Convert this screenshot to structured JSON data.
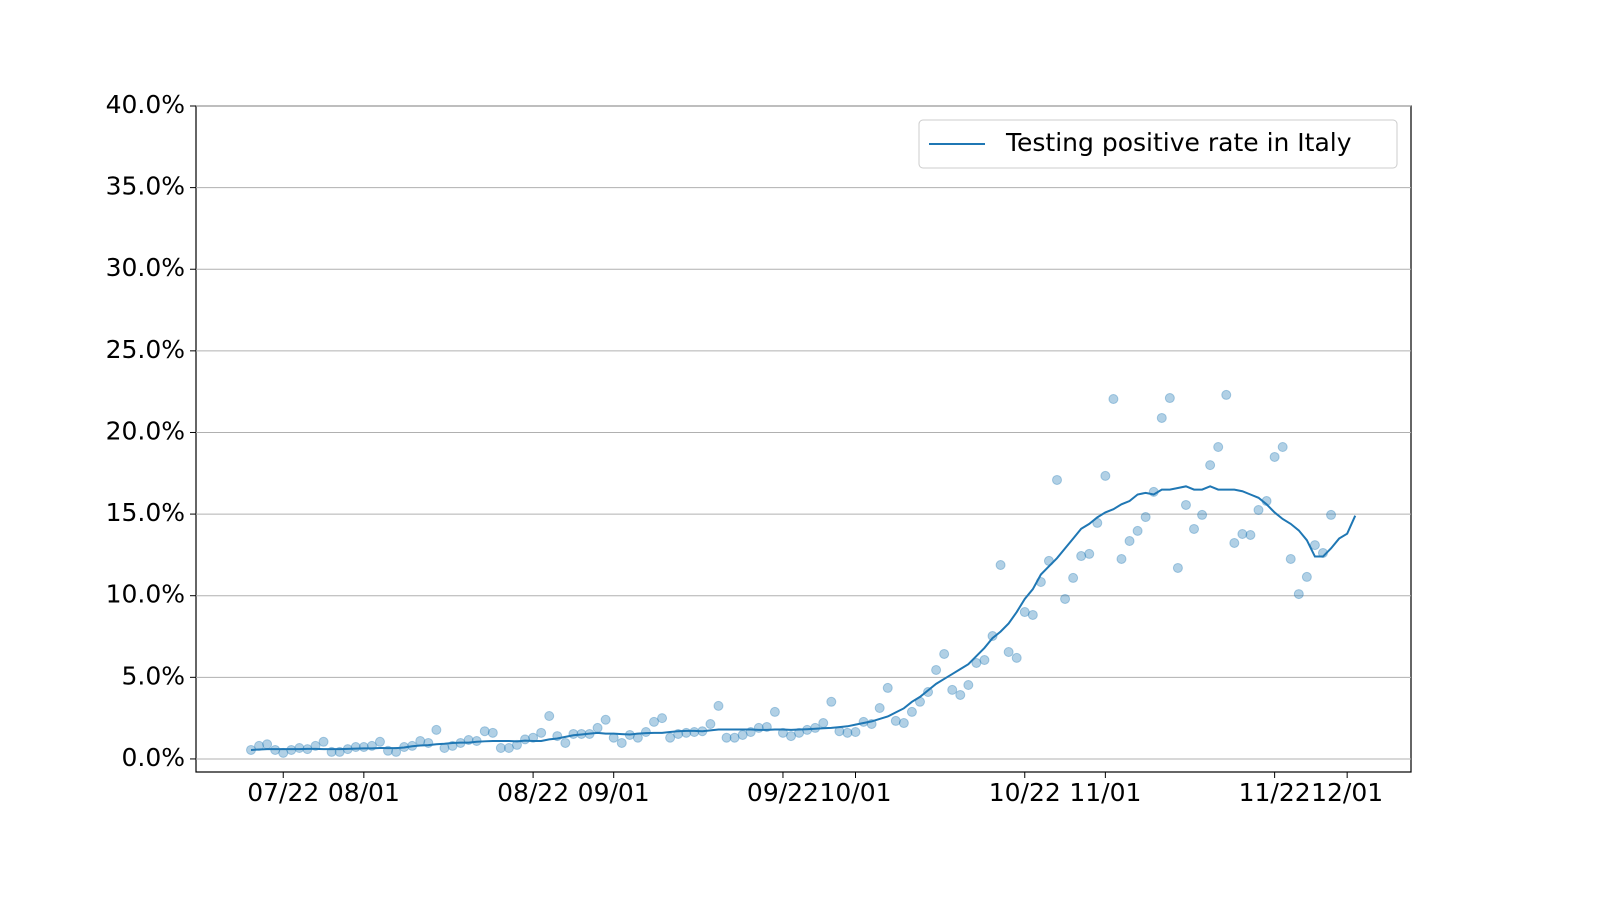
{
  "chart_data": {
    "type": "line",
    "x": [
      "07/18",
      "07/19",
      "07/20",
      "07/21",
      "07/22",
      "07/23",
      "07/24",
      "07/25",
      "07/26",
      "07/27",
      "07/28",
      "07/29",
      "07/30",
      "07/31",
      "08/01",
      "08/02",
      "08/03",
      "08/04",
      "08/05",
      "08/06",
      "08/07",
      "08/08",
      "08/09",
      "08/10",
      "08/11",
      "08/12",
      "08/13",
      "08/14",
      "08/15",
      "08/16",
      "08/17",
      "08/18",
      "08/19",
      "08/20",
      "08/21",
      "08/22",
      "08/23",
      "08/24",
      "08/25",
      "08/26",
      "08/27",
      "08/28",
      "08/29",
      "08/30",
      "08/31",
      "09/01",
      "09/02",
      "09/03",
      "09/04",
      "09/05",
      "09/06",
      "09/07",
      "09/08",
      "09/09",
      "09/10",
      "09/11",
      "09/12",
      "09/13",
      "09/14",
      "09/15",
      "09/16",
      "09/17",
      "09/18",
      "09/19",
      "09/20",
      "09/21",
      "09/22",
      "09/23",
      "09/24",
      "09/25",
      "09/26",
      "09/27",
      "09/28",
      "09/29",
      "09/30",
      "10/01",
      "10/02",
      "10/03",
      "10/04",
      "10/05",
      "10/06",
      "10/07",
      "10/08",
      "10/09",
      "10/10",
      "10/11",
      "10/12",
      "10/13",
      "10/14",
      "10/15",
      "10/16",
      "10/17",
      "10/18",
      "10/19",
      "10/20",
      "10/21",
      "10/22",
      "10/23",
      "10/24",
      "10/25",
      "10/26",
      "10/27",
      "10/28",
      "10/29",
      "10/30",
      "10/31",
      "11/01",
      "11/02",
      "11/03",
      "11/04",
      "11/05",
      "11/06",
      "11/07",
      "11/08",
      "11/09",
      "11/10",
      "11/11",
      "11/12",
      "11/13",
      "11/14",
      "11/15",
      "11/16",
      "11/17",
      "11/18",
      "11/19",
      "11/20",
      "11/21",
      "11/22",
      "11/23",
      "11/24",
      "11/25",
      "11/26",
      "11/27",
      "11/28",
      "11/29",
      "11/30",
      "12/01",
      "12/02"
    ],
    "series": [
      {
        "type": "scatter",
        "color": "#1f77b4",
        "alpha": 0.35,
        "values": [
          0.55,
          0.8,
          0.9,
          0.55,
          0.37,
          0.55,
          0.67,
          0.6,
          0.8,
          1.05,
          0.43,
          0.43,
          0.6,
          0.73,
          0.73,
          0.8,
          1.05,
          0.5,
          0.43,
          0.73,
          0.8,
          1.1,
          0.98,
          1.78,
          0.67,
          0.8,
          0.98,
          1.16,
          1.1,
          1.7,
          1.6,
          0.67,
          0.67,
          0.86,
          1.2,
          1.3,
          1.6,
          2.63,
          1.4,
          0.98,
          1.53,
          1.53,
          1.53,
          1.9,
          2.4,
          1.3,
          0.98,
          1.47,
          1.3,
          1.65,
          2.27,
          2.5,
          1.3,
          1.53,
          1.6,
          1.65,
          1.7,
          2.14,
          3.25,
          1.3,
          1.3,
          1.47,
          1.65,
          1.9,
          1.96,
          2.88,
          1.6,
          1.4,
          1.6,
          1.78,
          1.9,
          2.2,
          3.5,
          1.7,
          1.6,
          1.65,
          2.27,
          2.14,
          3.12,
          4.35,
          2.33,
          2.2,
          2.88,
          3.5,
          4.1,
          5.45,
          6.43,
          4.23,
          3.92,
          4.53,
          5.88,
          6.06,
          7.53,
          11.88,
          6.55,
          6.19,
          9.0,
          8.82,
          10.84,
          12.13,
          17.09,
          9.8,
          11.09,
          12.43,
          12.56,
          14.46,
          17.34,
          22.05,
          12.25,
          13.35,
          13.97,
          14.82,
          16.36,
          20.89,
          22.11,
          11.7,
          15.56,
          14.09,
          14.95,
          18.0,
          19.11,
          22.3,
          13.23,
          13.78,
          13.72,
          15.25,
          15.8,
          18.5,
          19.11,
          12.25,
          10.1,
          11.15,
          13.1,
          12.62,
          14.95,
          null,
          null,
          null
        ]
      },
      {
        "type": "line",
        "name": "Testing positive rate in Italy",
        "color": "#1f77b4",
        "values": [
          0.55,
          0.58,
          0.6,
          0.6,
          0.6,
          0.6,
          0.6,
          0.62,
          0.62,
          0.6,
          0.6,
          0.6,
          0.62,
          0.63,
          0.65,
          0.65,
          0.67,
          0.66,
          0.66,
          0.7,
          0.78,
          0.82,
          0.85,
          0.9,
          0.93,
          0.98,
          1.0,
          1.0,
          1.05,
          1.08,
          1.1,
          1.1,
          1.1,
          1.08,
          1.12,
          1.1,
          1.1,
          1.2,
          1.25,
          1.35,
          1.45,
          1.5,
          1.55,
          1.6,
          1.55,
          1.55,
          1.52,
          1.5,
          1.55,
          1.58,
          1.6,
          1.6,
          1.65,
          1.7,
          1.72,
          1.72,
          1.7,
          1.75,
          1.8,
          1.8,
          1.8,
          1.8,
          1.8,
          1.78,
          1.78,
          1.8,
          1.8,
          1.78,
          1.8,
          1.82,
          1.85,
          1.88,
          1.9,
          1.95,
          2.0,
          2.1,
          2.2,
          2.3,
          2.45,
          2.6,
          2.85,
          3.1,
          3.5,
          3.8,
          4.2,
          4.6,
          4.9,
          5.2,
          5.5,
          5.8,
          6.3,
          6.8,
          7.4,
          7.8,
          8.3,
          9.0,
          9.8,
          10.4,
          11.3,
          11.8,
          12.3,
          12.9,
          13.5,
          14.1,
          14.4,
          14.8,
          15.1,
          15.3,
          15.6,
          15.8,
          16.2,
          16.3,
          16.2,
          16.5,
          16.5,
          16.6,
          16.7,
          16.5,
          16.5,
          16.7,
          16.5,
          16.5,
          16.5,
          16.4,
          16.2,
          16.0,
          15.6,
          15.1,
          14.7,
          14.4,
          14.0,
          13.4,
          12.4,
          12.4,
          12.9,
          13.5,
          13.8,
          14.9
        ]
      }
    ],
    "xticks": [
      "07/22",
      "08/01",
      "08/22",
      "09/01",
      "09/22",
      "10/01",
      "10/22",
      "11/01",
      "11/22",
      "12/01"
    ],
    "ylim": [
      -0.8,
      40
    ],
    "yticks": [
      {
        "value": 0,
        "label": "0.0%"
      },
      {
        "value": 5,
        "label": "5.0%"
      },
      {
        "value": 10,
        "label": "10.0%"
      },
      {
        "value": 15,
        "label": "15.0%"
      },
      {
        "value": 20,
        "label": "20.0%"
      },
      {
        "value": 25,
        "label": "25.0%"
      },
      {
        "value": 30,
        "label": "30.0%"
      },
      {
        "value": 35,
        "label": "35.0%"
      },
      {
        "value": 40,
        "label": "40.0%"
      }
    ],
    "grid": "y",
    "legend": "upper right"
  }
}
